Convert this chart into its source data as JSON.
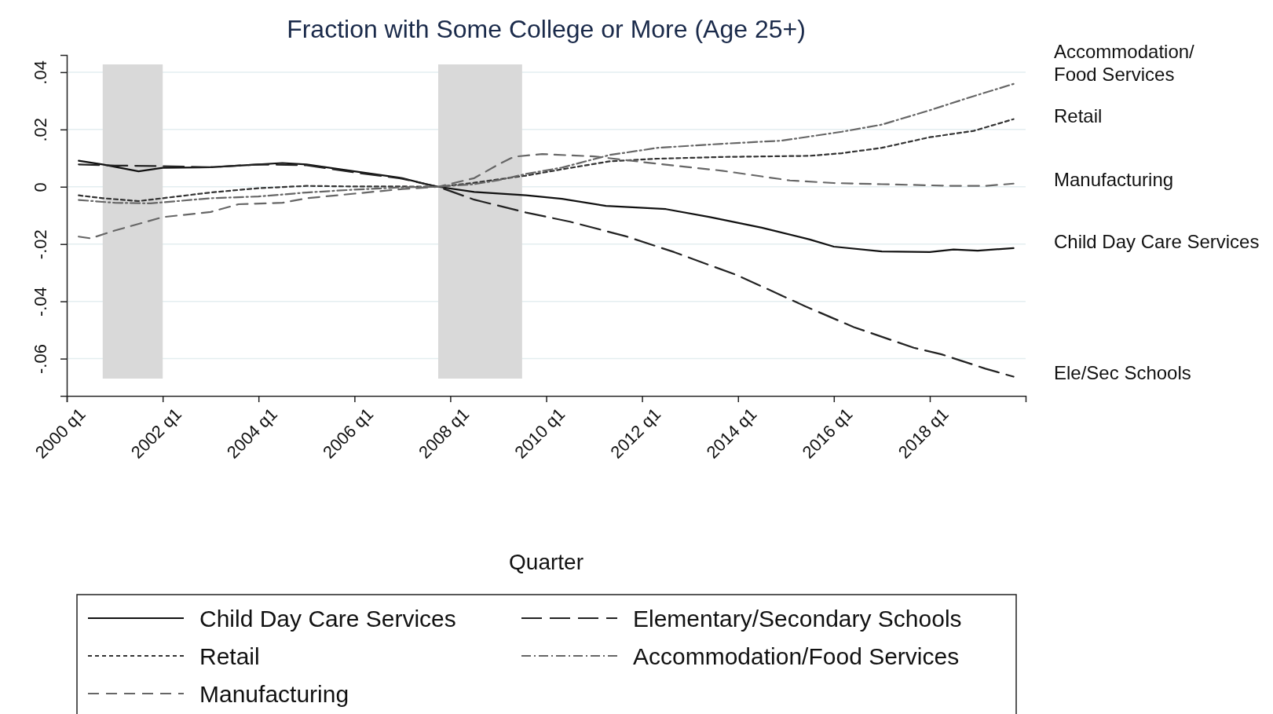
{
  "chart_data": {
    "type": "line",
    "title": "Fraction with Some College or More (Age 25+)",
    "xlabel": "Quarter",
    "xlim": [
      "2000-01",
      "2020-01"
    ],
    "xticks": [
      {
        "value": "2000-01",
        "label": "2000 q1"
      },
      {
        "value": "2002-01",
        "label": "2002 q1"
      },
      {
        "value": "2004-01",
        "label": "2004 q1"
      },
      {
        "value": "2006-01",
        "label": "2006 q1"
      },
      {
        "value": "2008-01",
        "label": "2008 q1"
      },
      {
        "value": "2010-01",
        "label": "2010 q1"
      },
      {
        "value": "2012-01",
        "label": "2012 q1"
      },
      {
        "value": "2014-01",
        "label": "2014 q1"
      },
      {
        "value": "2016-01",
        "label": "2016 q1"
      },
      {
        "value": "2018-01",
        "label": "2018 q1"
      }
    ],
    "ylim": [
      -0.073,
      0.046
    ],
    "yticks": [
      {
        "value": -0.06,
        "label": "-.06"
      },
      {
        "value": -0.04,
        "label": "-.04"
      },
      {
        "value": -0.02,
        "label": "-.02"
      },
      0,
      {
        "value": 0.02,
        "label": ".02"
      },
      {
        "value": 0.04,
        "label": ".04"
      }
    ],
    "grid": "y",
    "legend": "bottom",
    "bands": [
      {
        "axis": "x",
        "from": "2000-10",
        "to": "2002-01",
        "color": "#d9d9d9"
      },
      {
        "axis": "x",
        "from": "2007-10",
        "to": "2009-07",
        "color": "#d9d9d9"
      }
    ],
    "series": [
      {
        "name": "Child Day Care Services",
        "color": "#111111",
        "line_style": "solid",
        "x": [
          "2000-04",
          "2000-10",
          "2001-07",
          "2002-01",
          "2003-01",
          "2004-01",
          "2004-07",
          "2005-01",
          "2006-01",
          "2007-01",
          "2007-07",
          "2007-10",
          "2008-07",
          "2009-08",
          "2010-05",
          "2011-04",
          "2012-07",
          "2013-06",
          "2014-07",
          "2015-07",
          "2016-01",
          "2017-01",
          "2018-01",
          "2018-07",
          "2019-01",
          "2019-10"
        ],
        "values": [
          0.0091,
          0.0078,
          0.0054,
          0.0066,
          0.0068,
          0.0078,
          0.0083,
          0.0078,
          0.0054,
          0.003,
          0.0009,
          0,
          -0.0018,
          -0.003,
          -0.0042,
          -0.0067,
          -0.0078,
          -0.0106,
          -0.0143,
          -0.0184,
          -0.0209,
          -0.0226,
          -0.0228,
          -0.0219,
          -0.0223,
          -0.0214
        ]
      },
      {
        "name": "Elementary/Secondary Schools",
        "color": "#222222",
        "line_style": "longdash",
        "x": [
          "2000-04",
          "2001-01",
          "2002-01",
          "2003-01",
          "2004-01",
          "2005-01",
          "2006-01",
          "2007-01",
          "2007-10",
          "2008-07",
          "2009-08",
          "2010-07",
          "2011-09",
          "2012-09",
          "2014-01",
          "2015-06",
          "2016-06",
          "2017-09",
          "2018-04",
          "2019-03",
          "2019-10"
        ],
        "values": [
          0.0078,
          0.0074,
          0.0072,
          0.0068,
          0.0078,
          0.0075,
          0.005,
          0.0028,
          0,
          -0.0045,
          -0.009,
          -0.0122,
          -0.0173,
          -0.0228,
          -0.031,
          -0.0418,
          -0.049,
          -0.0562,
          -0.0585,
          -0.0635,
          -0.0663
        ]
      },
      {
        "name": "Retail",
        "color": "#333333",
        "line_style": "dotted",
        "x": [
          "2000-04",
          "2000-10",
          "2001-07",
          "2002-01",
          "2003-01",
          "2004-01",
          "2005-01",
          "2006-01",
          "2007-01",
          "2007-10",
          "2008-07",
          "2009-08",
          "2010-05",
          "2011-05",
          "2012-05",
          "2013-09",
          "2015-07",
          "2016-03",
          "2017-01",
          "2018-01",
          "2018-12",
          "2019-10"
        ],
        "values": [
          -0.003,
          -0.004,
          -0.005,
          -0.004,
          -0.002,
          -0.0005,
          0.0003,
          0.0001,
          0.0001,
          0,
          0.0014,
          0.0039,
          0.0061,
          0.0089,
          0.0098,
          0.0104,
          0.0108,
          0.0117,
          0.0136,
          0.0173,
          0.0195,
          0.0236
        ]
      },
      {
        "name": "Accommodation/Food Services",
        "color": "#666666",
        "line_style": "dashdot",
        "x": [
          "2000-04",
          "2001-01",
          "2001-10",
          "2003-01",
          "2004-01",
          "2005-01",
          "2006-01",
          "2007-01",
          "2007-10",
          "2008-07",
          "2009-01",
          "2009-08",
          "2010-05",
          "2011-05",
          "2012-05",
          "2013-09",
          "2014-12",
          "2016-03",
          "2017-01",
          "2018-01",
          "2018-11",
          "2019-10"
        ],
        "values": [
          -0.0046,
          -0.0056,
          -0.0058,
          -0.004,
          -0.0034,
          -0.002,
          -0.001,
          -0.0002,
          0,
          0.0009,
          0.0023,
          0.0045,
          0.0067,
          0.0111,
          0.0136,
          0.015,
          0.0161,
          0.0192,
          0.0217,
          0.0267,
          0.0312,
          0.0359
        ]
      },
      {
        "name": "Manufacturing",
        "color": "#666666",
        "line_style": "dashed",
        "x": [
          "2000-04",
          "2000-07",
          "2001-01",
          "2002-01",
          "2003-01",
          "2003-08",
          "2004-07",
          "2005-01",
          "2006-01",
          "2007-01",
          "2007-10",
          "2008-07",
          "2009-01",
          "2009-05",
          "2009-12",
          "2011-01",
          "2012-05",
          "2013-09",
          "2015-02",
          "2016-01",
          "2017-01",
          "2018-07",
          "2019-03",
          "2019-10"
        ],
        "values": [
          -0.0174,
          -0.018,
          -0.0153,
          -0.0106,
          -0.0088,
          -0.0061,
          -0.0056,
          -0.004,
          -0.0024,
          -0.0008,
          0,
          0.003,
          0.0078,
          0.0105,
          0.0114,
          0.0106,
          0.008,
          0.0056,
          0.0022,
          0.0013,
          0.0009,
          0.0003,
          0.0003,
          0.0011
        ]
      }
    ],
    "annotations": [
      "Accommodation/\nFood Services",
      "Retail",
      "Manufacturing",
      "Child Day Care Services",
      "Ele/Sec Schools"
    ]
  }
}
